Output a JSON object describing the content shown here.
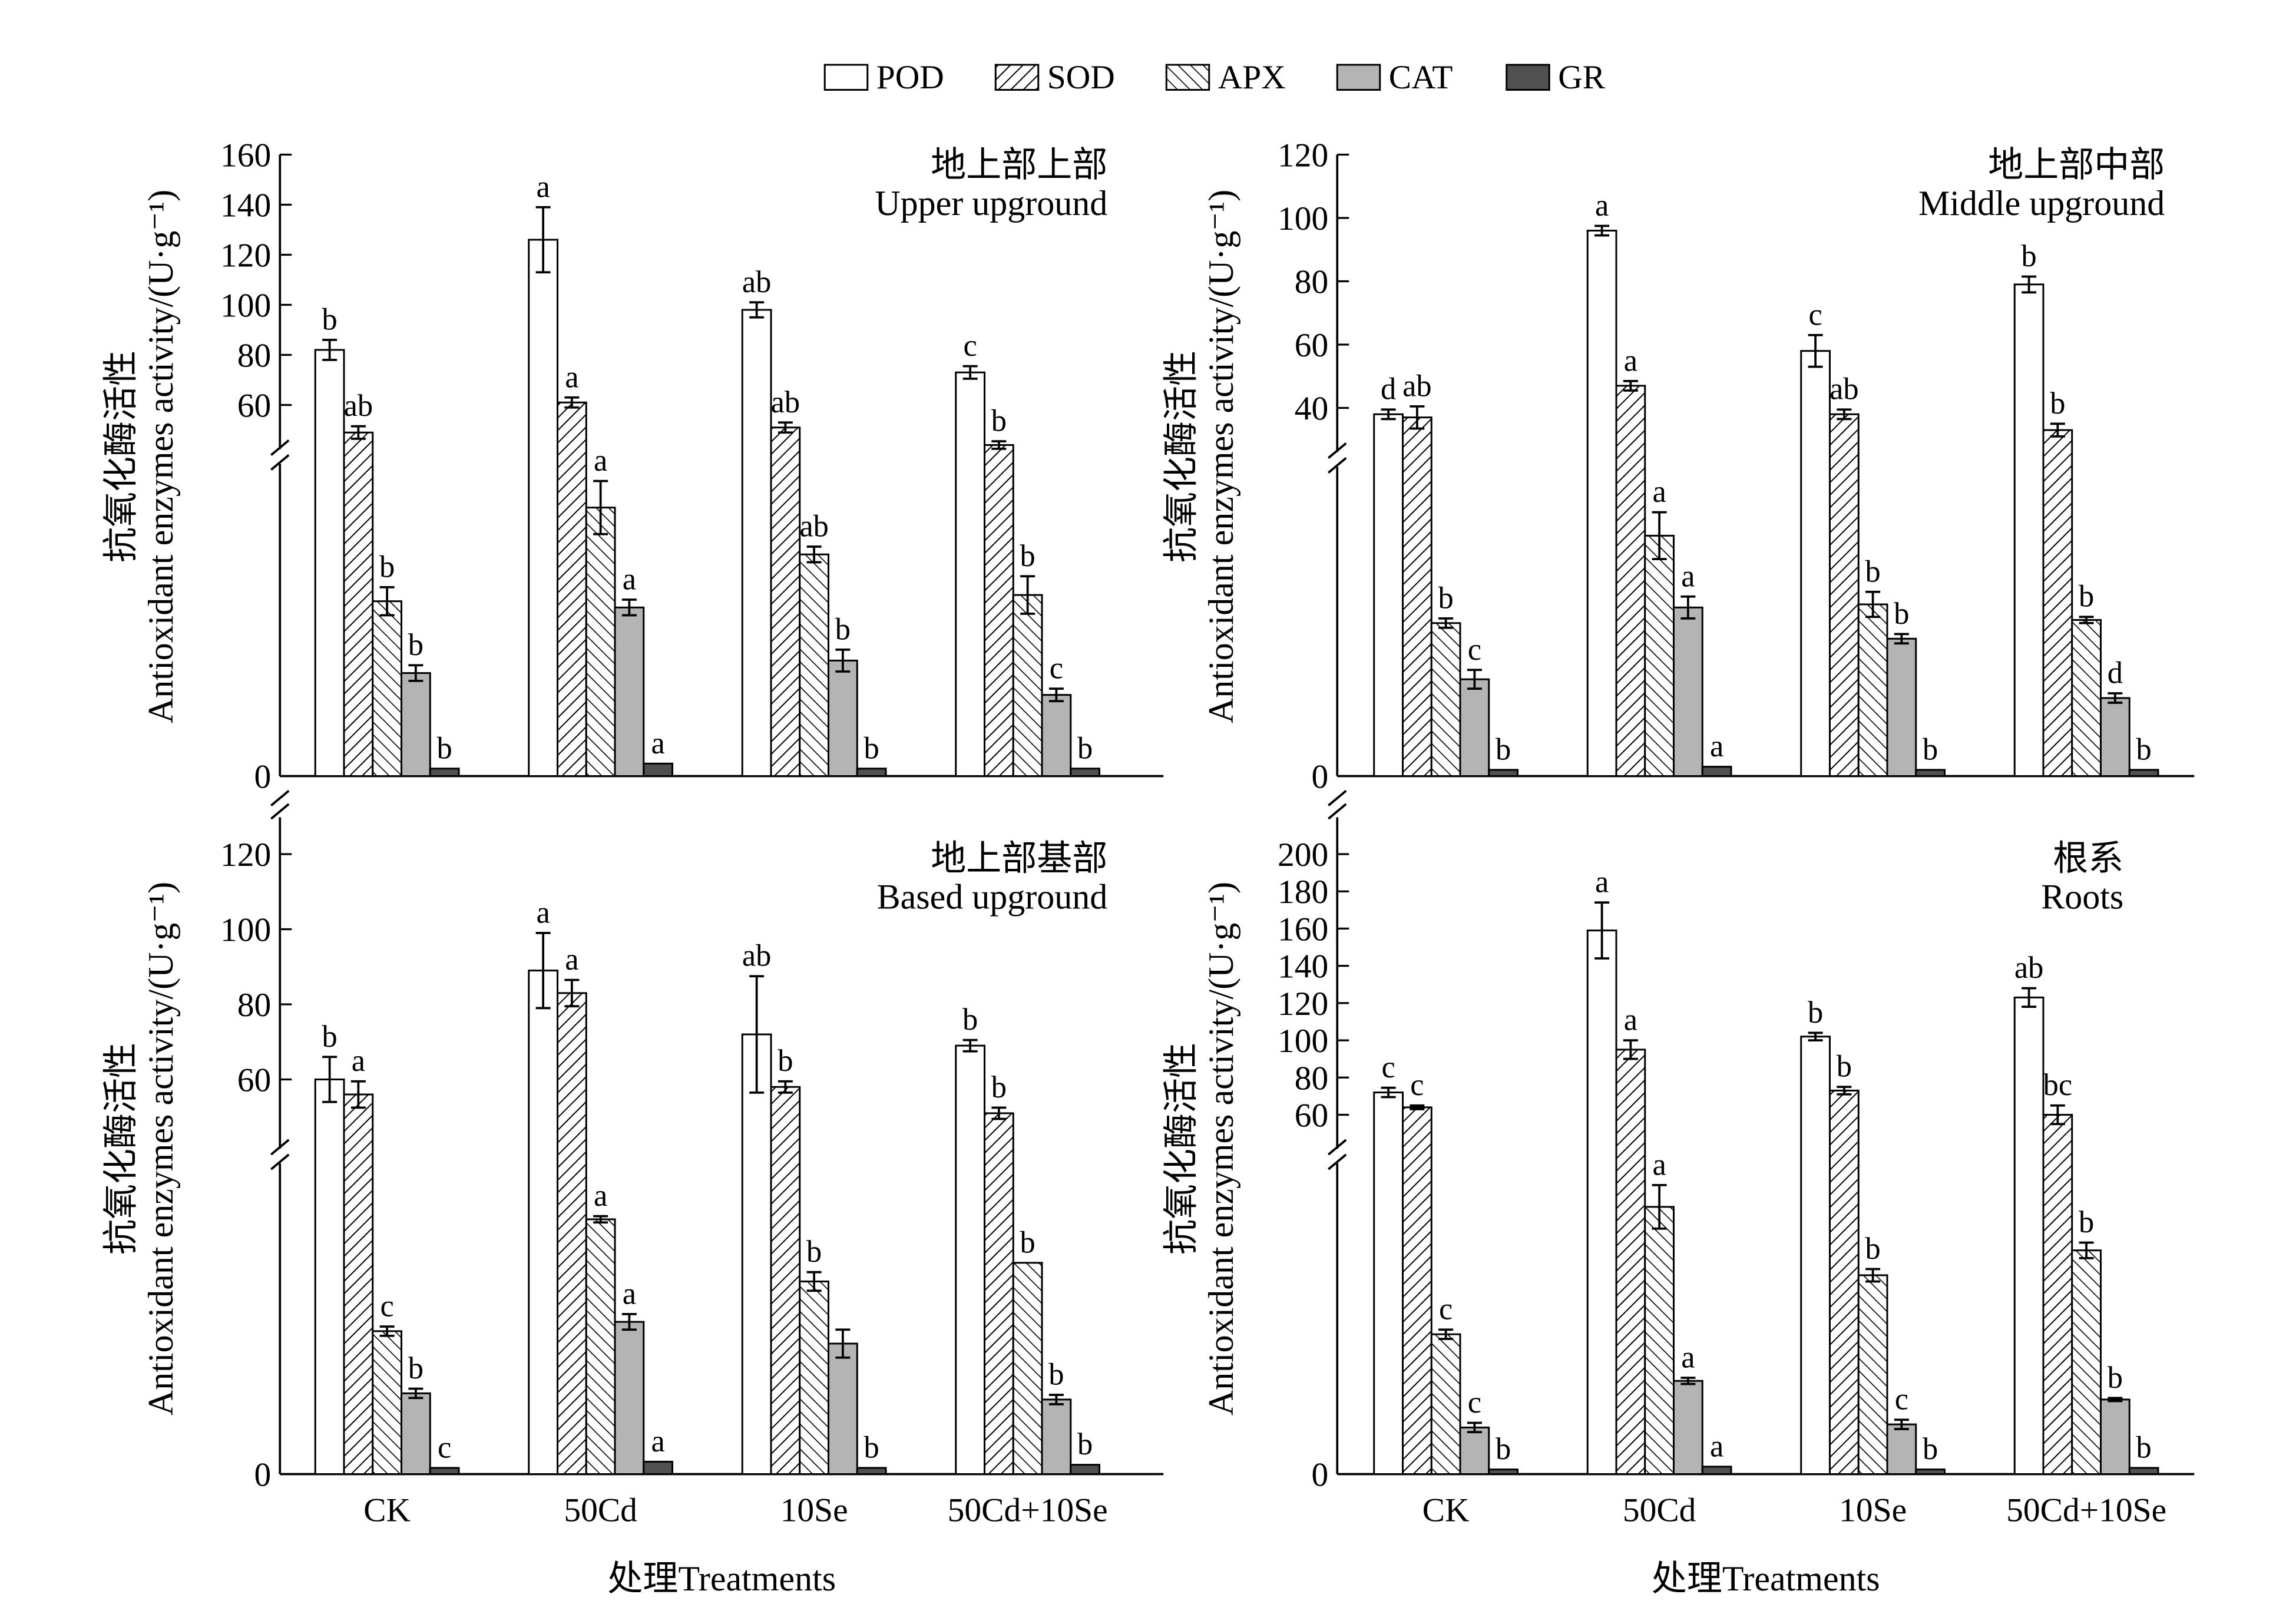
{
  "chart_data": {
    "type": "bar",
    "legend": {
      "placement": "top-center",
      "entries": [
        "POD",
        "SOD",
        "APX",
        "CAT",
        "GR"
      ]
    },
    "series_styles": {
      "POD": "white",
      "SOD": "hatch-forward",
      "APX": "hatch-backward",
      "CAT": "#b4b4b4",
      "GR": "#505050"
    },
    "categories": [
      "CK",
      "50Cd",
      "10Se",
      "50Cd+10Se"
    ],
    "xlabel": "处理Treatments",
    "ylabel_cn": "抗氧化酶活性",
    "ylabel_en": "Antioxidant enzymes activity/(U·g⁻¹)",
    "note": "Broken y-axis: POD and SOD on upper scale (U·g⁻¹); APX, CAT, GR on un-ticked lower scale (relative 0-100 of lower segment)",
    "panels": [
      {
        "title_cn": "地上部上部",
        "title_en": "Upper upground",
        "upper_ticks": [
          60,
          80,
          100,
          120,
          140,
          160
        ],
        "lower_ticks": [
          0
        ],
        "series": [
          {
            "name": "POD",
            "segment": "upper",
            "values": [
              82,
              126,
              98,
              73
            ],
            "errors": [
              4,
              13,
              3,
              2.5
            ],
            "letters": [
              "b",
              "a",
              "ab",
              "c"
            ]
          },
          {
            "name": "SOD",
            "segment": "upper",
            "values": [
              49,
              61,
              51,
              44
            ],
            "errors": [
              2.5,
              2,
              2,
              1.5
            ],
            "letters": [
              "ab",
              "a",
              "ab",
              "b"
            ]
          },
          {
            "name": "APX",
            "segment": "lower",
            "values": [
              56,
              86,
              71,
              58
            ],
            "errors": [
              4.5,
              8.5,
              2.5,
              6
            ],
            "letters": [
              "b",
              "a",
              "ab",
              "b"
            ]
          },
          {
            "name": "CAT",
            "segment": "lower",
            "values": [
              33,
              54,
              37,
              26
            ],
            "errors": [
              2.5,
              2.5,
              3.5,
              2
            ],
            "letters": [
              "b",
              "a",
              "b",
              "c"
            ]
          },
          {
            "name": "GR",
            "segment": "lower",
            "values": [
              2.4,
              4,
              2.4,
              2.4
            ],
            "errors": [
              0,
              0,
              0,
              0
            ],
            "letters": [
              "b",
              "a",
              "b",
              "b"
            ]
          }
        ]
      },
      {
        "title_cn": "地上部中部",
        "title_en": "Middle upground",
        "upper_ticks": [
          40,
          60,
          80,
          100,
          120
        ],
        "lower_ticks": [
          0
        ],
        "series": [
          {
            "name": "POD",
            "segment": "upper",
            "values": [
              38,
              96,
              58,
              79
            ],
            "errors": [
              1.5,
              1.5,
              5,
              2.5
            ],
            "letters": [
              "d",
              "a",
              "c",
              "b"
            ]
          },
          {
            "name": "SOD",
            "segment": "upper",
            "values": [
              37,
              47,
              38,
              33
            ],
            "errors": [
              3.5,
              1.5,
              1.5,
              2
            ],
            "letters": [
              "ab",
              "a",
              "ab",
              "b"
            ]
          },
          {
            "name": "APX",
            "segment": "lower",
            "values": [
              49,
              77,
              55,
              50
            ],
            "errors": [
              1.5,
              7.5,
              4,
              1
            ],
            "letters": [
              "b",
              "a",
              "b",
              "b"
            ]
          },
          {
            "name": "CAT",
            "segment": "lower",
            "values": [
              31,
              54,
              44,
              25
            ],
            "errors": [
              3,
              3.5,
              1.5,
              1.5
            ],
            "letters": [
              "c",
              "a",
              "b",
              "d"
            ]
          },
          {
            "name": "GR",
            "segment": "lower",
            "values": [
              2,
              3,
              2,
              2
            ],
            "errors": [
              0,
              0,
              0,
              0
            ],
            "letters": [
              "b",
              "a",
              "b",
              "b"
            ]
          }
        ]
      },
      {
        "title_cn": "地上部基部",
        "title_en": "Based upground",
        "upper_ticks": [
          60,
          80,
          100,
          120
        ],
        "lower_ticks": [
          0
        ],
        "series": [
          {
            "name": "POD",
            "segment": "upper",
            "values": [
              60,
              89,
              72,
              69
            ],
            "errors": [
              6,
              10,
              15.5,
              1.5
            ],
            "letters": [
              "b",
              "a",
              "ab",
              "b"
            ]
          },
          {
            "name": "SOD",
            "segment": "upper",
            "values": [
              56,
              83,
              58,
              51
            ],
            "errors": [
              3.5,
              3.5,
              1.5,
              1.5
            ],
            "letters": [
              "a",
              "a",
              "b",
              "b"
            ]
          },
          {
            "name": "APX",
            "segment": "lower",
            "values": [
              46,
              82,
              62,
              68
            ],
            "errors": [
              1.5,
              1,
              3,
              0
            ],
            "letters": [
              "c",
              "a",
              "b",
              "b"
            ]
          },
          {
            "name": "CAT",
            "segment": "lower",
            "values": [
              26,
              49,
              42,
              24
            ],
            "errors": [
              1.5,
              2.5,
              4.5,
              1.5
            ],
            "letters": [
              "b",
              "a",
              "",
              "b"
            ]
          },
          {
            "name": "GR",
            "segment": "lower",
            "values": [
              2,
              4,
              2,
              3
            ],
            "errors": [
              0,
              0,
              0,
              0
            ],
            "letters": [
              "c",
              "a",
              "b",
              "b"
            ]
          }
        ]
      },
      {
        "title_cn": "根系",
        "title_en": "Roots",
        "upper_ticks": [
          60,
          80,
          100,
          120,
          140,
          160,
          180,
          200
        ],
        "lower_ticks": [
          0
        ],
        "series": [
          {
            "name": "POD",
            "segment": "upper",
            "values": [
              72,
              159,
              102,
              123
            ],
            "errors": [
              2.5,
              15,
              2,
              5
            ],
            "letters": [
              "c",
              "a",
              "b",
              "ab"
            ]
          },
          {
            "name": "SOD",
            "segment": "upper",
            "values": [
              64,
              95,
              73,
              60
            ],
            "errors": [
              1,
              5,
              2,
              5
            ],
            "letters": [
              "c",
              "a",
              "b",
              "bc"
            ]
          },
          {
            "name": "APX",
            "segment": "lower",
            "values": [
              45,
              86,
              64,
              72
            ],
            "errors": [
              1.5,
              7,
              2,
              2.5
            ],
            "letters": [
              "c",
              "a",
              "b",
              "b"
            ]
          },
          {
            "name": "CAT",
            "segment": "lower",
            "values": [
              15,
              30,
              16,
              24
            ],
            "errors": [
              1.5,
              1,
              1.5,
              0.5
            ],
            "letters": [
              "c",
              "a",
              "c",
              "b"
            ]
          },
          {
            "name": "GR",
            "segment": "lower",
            "values": [
              1.5,
              2.4,
              1.5,
              2
            ],
            "errors": [
              0,
              0,
              0,
              0
            ],
            "letters": [
              "b",
              "a",
              "b",
              "b"
            ]
          }
        ]
      }
    ]
  }
}
